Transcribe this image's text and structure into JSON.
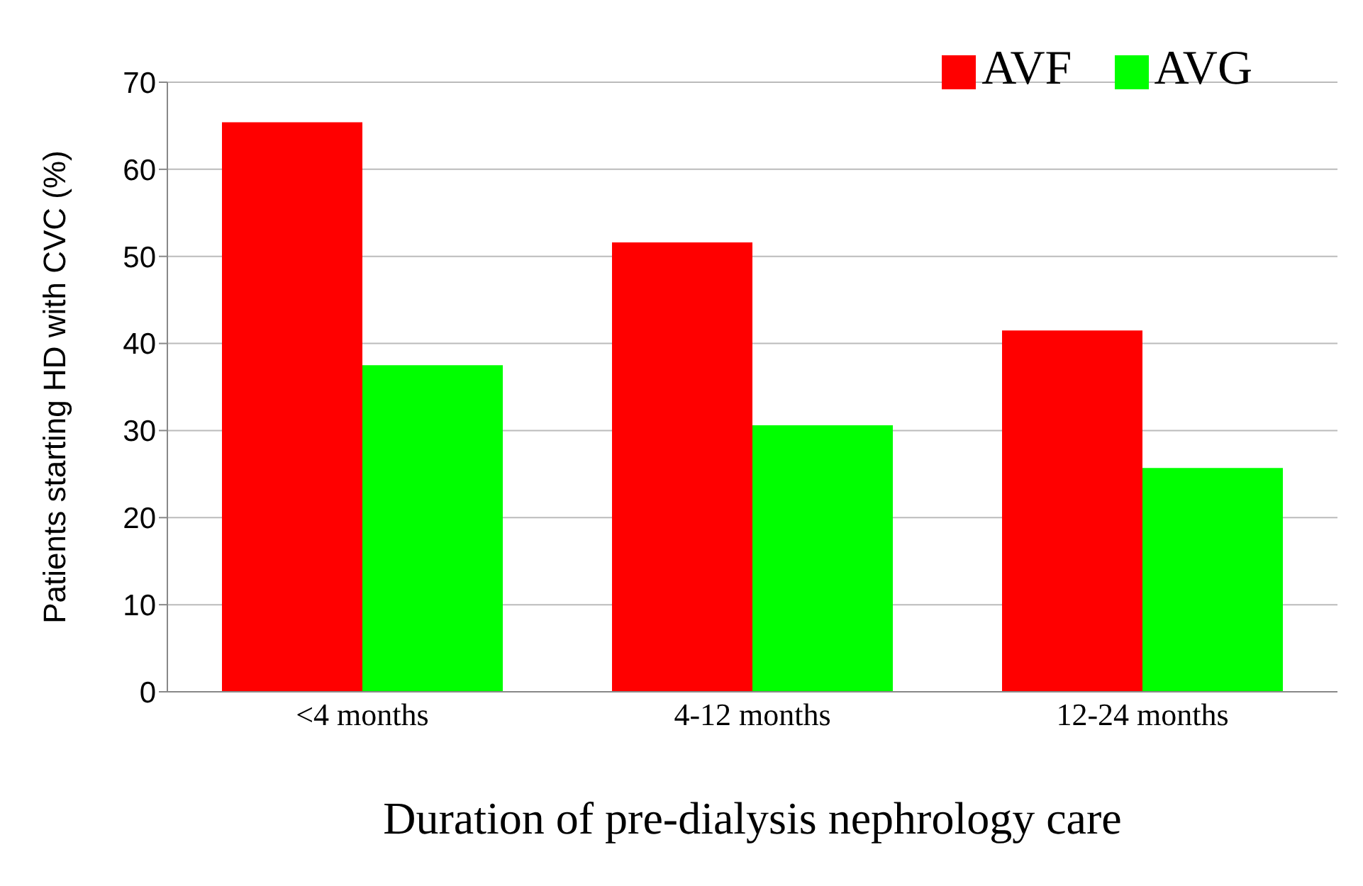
{
  "chart_data": {
    "type": "bar",
    "xlabel": "Duration of pre-dialysis nephrology care",
    "ylabel": "Patients starting HD with CVC (%)",
    "categories": [
      "<4 months",
      "4-12 months",
      "12-24 months"
    ],
    "series": [
      {
        "name": "AVF",
        "color": "#ff0000",
        "values": [
          65.4,
          51.6,
          41.5
        ]
      },
      {
        "name": "AVG",
        "color": "#00ff00",
        "values": [
          37.5,
          30.6,
          25.7
        ]
      }
    ],
    "ylim": [
      0,
      70
    ],
    "yticks": [
      0,
      10,
      20,
      30,
      40,
      50,
      60,
      70
    ],
    "grid": "y",
    "legend": "top right"
  }
}
